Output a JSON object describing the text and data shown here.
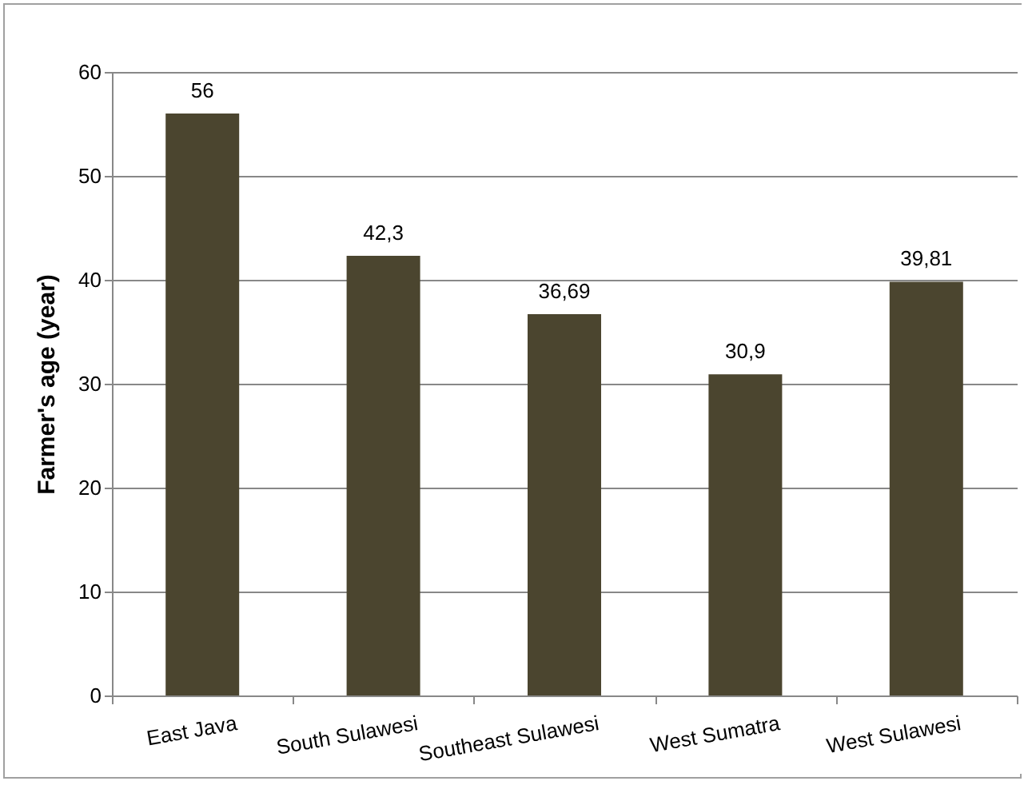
{
  "chart_data": {
    "type": "bar",
    "ylabel": "Farmer's age (year)",
    "categories": [
      "East Java",
      "South Sulawesi",
      "Southeast Sulawesi",
      "West Sumatra",
      "West Sulawesi"
    ],
    "values": [
      56,
      42.3,
      36.69,
      30.9,
      39.81
    ],
    "value_labels": [
      "56",
      "42,3",
      "36,69",
      "30,9",
      "39,81"
    ],
    "color": "#4b452f",
    "ylim": [
      0,
      60
    ],
    "yticks": [
      0,
      10,
      20,
      30,
      40,
      50,
      60
    ],
    "grid": "y"
  }
}
